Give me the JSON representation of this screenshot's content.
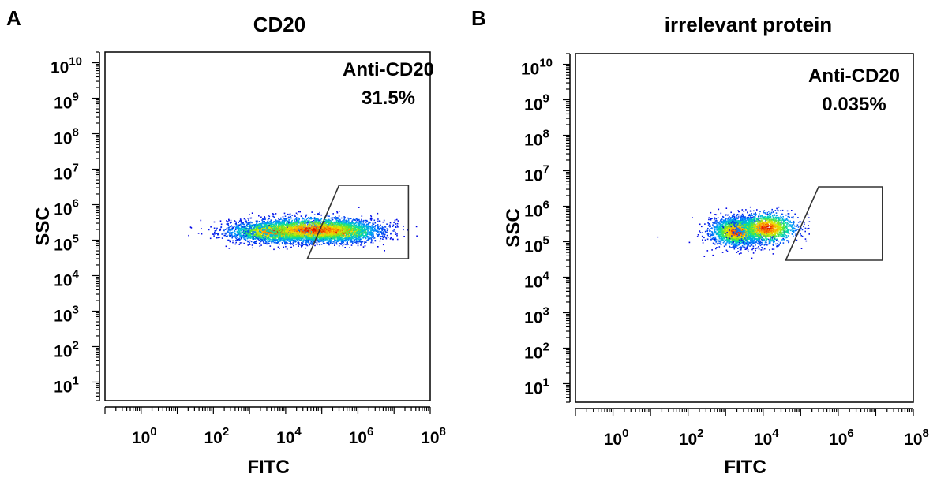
{
  "chart_data": [
    {
      "type": "scatter",
      "panel_letter": "A",
      "title": "CD20",
      "xlabel": "FITC",
      "ylabel": "SSC",
      "x_scale": "log",
      "y_scale": "log",
      "xlim": [
        0.1,
        100000000
      ],
      "ylim": [
        3,
        20000000000
      ],
      "x_ticks": [
        {
          "value": 1,
          "base": "10",
          "exp": "0"
        },
        {
          "value": 100,
          "base": "10",
          "exp": "2"
        },
        {
          "value": 10000,
          "base": "10",
          "exp": "4"
        },
        {
          "value": 1000000,
          "base": "10",
          "exp": "6"
        },
        {
          "value": 100000000,
          "base": "10",
          "exp": "8"
        }
      ],
      "y_ticks": [
        {
          "value": 10,
          "base": "10",
          "exp": "1"
        },
        {
          "value": 100,
          "base": "10",
          "exp": "2"
        },
        {
          "value": 1000,
          "base": "10",
          "exp": "3"
        },
        {
          "value": 10000,
          "base": "10",
          "exp": "4"
        },
        {
          "value": 100000,
          "base": "10",
          "exp": "5"
        },
        {
          "value": 1000000,
          "base": "10",
          "exp": "6"
        },
        {
          "value": 10000000,
          "base": "10",
          "exp": "7"
        },
        {
          "value": 100000000,
          "base": "10",
          "exp": "8"
        },
        {
          "value": 1000000000,
          "base": "10",
          "exp": "9"
        },
        {
          "value": 10000000000,
          "base": "10",
          "exp": "10"
        }
      ],
      "gate": {
        "name": "Anti-CD20",
        "percent": "31.5%",
        "polygon": [
          [
            300000,
            3500000
          ],
          [
            25000000,
            3500000
          ],
          [
            25000000,
            30000
          ],
          [
            40000,
            30000
          ]
        ]
      },
      "populations": [
        {
          "cx": 6000,
          "cy": 180000,
          "wx": 0.7,
          "wy": 0.15,
          "n": 2600
        },
        {
          "cx": 300000,
          "cy": 180000,
          "wx": 0.55,
          "wy": 0.15,
          "n": 1500
        },
        {
          "cx": 60000,
          "cy": 200000,
          "wx": 0.9,
          "wy": 0.18,
          "n": 2000
        }
      ],
      "outliers": [
        [
          20,
          140000
        ],
        [
          150,
          200000
        ],
        [
          40000000,
          250000
        ]
      ]
    },
    {
      "type": "scatter",
      "panel_letter": "B",
      "title": "irrelevant protein",
      "xlabel": "FITC",
      "ylabel": "SSC",
      "x_scale": "log",
      "y_scale": "log",
      "xlim": [
        0.1,
        100000000
      ],
      "ylim": [
        3,
        20000000000
      ],
      "x_ticks": [
        {
          "value": 1,
          "base": "10",
          "exp": "0"
        },
        {
          "value": 100,
          "base": "10",
          "exp": "2"
        },
        {
          "value": 10000,
          "base": "10",
          "exp": "4"
        },
        {
          "value": 1000000,
          "base": "10",
          "exp": "6"
        },
        {
          "value": 100000000,
          "base": "10",
          "exp": "8"
        }
      ],
      "y_ticks": [
        {
          "value": 10,
          "base": "10",
          "exp": "1"
        },
        {
          "value": 100,
          "base": "10",
          "exp": "2"
        },
        {
          "value": 1000,
          "base": "10",
          "exp": "3"
        },
        {
          "value": 10000,
          "base": "10",
          "exp": "4"
        },
        {
          "value": 100000,
          "base": "10",
          "exp": "5"
        },
        {
          "value": 1000000,
          "base": "10",
          "exp": "6"
        },
        {
          "value": 10000000,
          "base": "10",
          "exp": "7"
        },
        {
          "value": 100000000,
          "base": "10",
          "exp": "8"
        },
        {
          "value": 1000000000,
          "base": "10",
          "exp": "9"
        },
        {
          "value": 10000000000,
          "base": "10",
          "exp": "10"
        }
      ],
      "gate": {
        "name": "Anti-CD20",
        "percent": "0.035%",
        "polygon": [
          [
            300000,
            3500000
          ],
          [
            15000000,
            3500000
          ],
          [
            15000000,
            30000
          ],
          [
            40000,
            30000
          ]
        ]
      },
      "populations": [
        {
          "cx": 2000,
          "cy": 200000,
          "wx": 0.35,
          "wy": 0.2,
          "n": 2300
        },
        {
          "cx": 12000,
          "cy": 250000,
          "wx": 0.4,
          "wy": 0.22,
          "n": 1300
        }
      ],
      "outliers": [
        [
          15,
          140000
        ],
        [
          150000,
          600000
        ]
      ]
    }
  ]
}
